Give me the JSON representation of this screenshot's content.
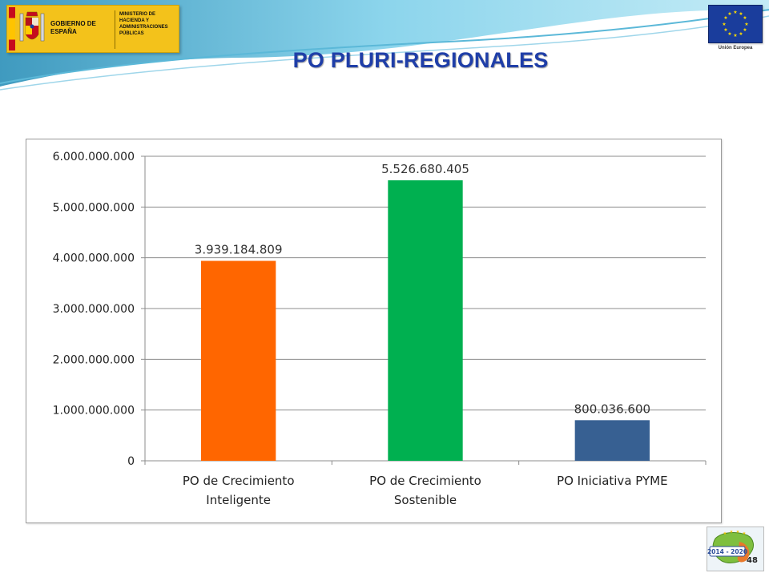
{
  "header": {
    "gov_name": "GOBIERNO DE ESPAÑA",
    "ministry_name": "MINISTERIO DE HACIENDA Y ADMINISTRACIONES PÚBLICAS",
    "eu_name": "Unión Europea"
  },
  "slide": {
    "title": "PO PLURI-REGIONALES",
    "page_number": "48",
    "badge_text": "2014 - 2020"
  },
  "colors": {
    "title": "#1f3ea8",
    "bar_1": "#ff6600",
    "bar_2": "#00b050",
    "bar_3": "#376092"
  },
  "chart_data": {
    "type": "bar",
    "title": "",
    "xlabel": "",
    "ylabel": "",
    "categories": [
      [
        "PO de Crecimiento",
        "Inteligente"
      ],
      [
        "PO de Crecimiento",
        "Sostenible"
      ],
      [
        "PO Iniciativa PYME"
      ]
    ],
    "values": [
      3939184809,
      5526680405,
      800036600
    ],
    "value_labels": [
      "3.939.184.809",
      "5.526.680.405",
      "800.036.600"
    ],
    "bar_colors": [
      "#ff6600",
      "#00b050",
      "#376092"
    ],
    "ylim": [
      0,
      6000000000
    ],
    "yticks": [
      0,
      1000000000,
      2000000000,
      3000000000,
      4000000000,
      5000000000,
      6000000000
    ],
    "ytick_labels": [
      "0",
      "1.000.000.000",
      "2.000.000.000",
      "3.000.000.000",
      "4.000.000.000",
      "5.000.000.000",
      "6.000.000.000"
    ],
    "grid": true,
    "legend": "none"
  }
}
